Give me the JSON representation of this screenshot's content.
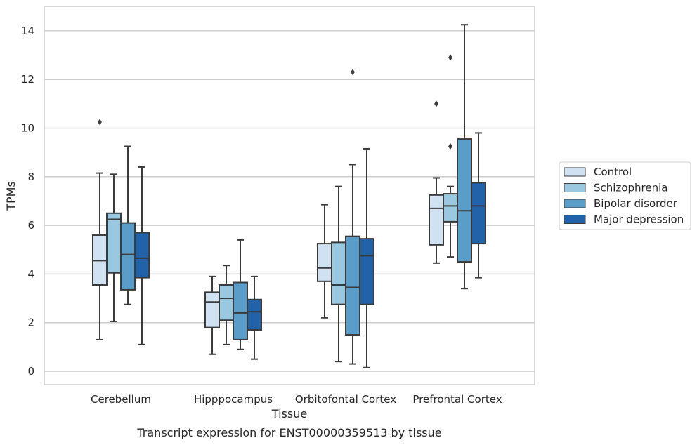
{
  "chart_data": {
    "type": "box",
    "xlabel": "Tissue",
    "ylabel": "TPMs",
    "caption": "Transcript expression for ENST00000359513 by tissue",
    "ylim": [
      -0.55,
      15
    ],
    "yticks": [
      0,
      2,
      4,
      6,
      8,
      10,
      12,
      14
    ],
    "grid": "horizontal",
    "legend_position": "right",
    "categories": [
      "Cerebellum",
      "Hipppocampus",
      "Orbitofontal Cortex",
      "Prefrontal Cortex"
    ],
    "series": [
      {
        "name": "Control",
        "color": "#d0e1f2",
        "boxes": [
          {
            "whislo": 1.3,
            "q1": 3.55,
            "med": 4.55,
            "q3": 5.6,
            "whishi": 8.15,
            "fliers": [
              10.25
            ]
          },
          {
            "whislo": 0.7,
            "q1": 1.8,
            "med": 2.85,
            "q3": 3.25,
            "whishi": 3.9,
            "fliers": []
          },
          {
            "whislo": 2.2,
            "q1": 3.7,
            "med": 4.25,
            "q3": 5.25,
            "whishi": 6.85,
            "fliers": []
          },
          {
            "whislo": 4.45,
            "q1": 5.2,
            "med": 6.7,
            "q3": 7.25,
            "whishi": 7.95,
            "fliers": [
              11.0
            ]
          }
        ]
      },
      {
        "name": "Schizophrenia",
        "color": "#9ac8e0",
        "boxes": [
          {
            "whislo": 2.05,
            "q1": 4.05,
            "med": 6.25,
            "q3": 6.5,
            "whishi": 8.1,
            "fliers": []
          },
          {
            "whislo": 1.1,
            "q1": 2.1,
            "med": 3.0,
            "q3": 3.55,
            "whishi": 4.35,
            "fliers": []
          },
          {
            "whislo": 0.4,
            "q1": 2.75,
            "med": 3.55,
            "q3": 5.3,
            "whishi": 7.6,
            "fliers": []
          },
          {
            "whislo": 4.7,
            "q1": 6.15,
            "med": 6.8,
            "q3": 7.3,
            "whishi": 7.6,
            "fliers": [
              9.25,
              12.9
            ]
          }
        ]
      },
      {
        "name": "Bipolar disorder",
        "color": "#5a9dc9",
        "boxes": [
          {
            "whislo": 2.75,
            "q1": 3.35,
            "med": 4.8,
            "q3": 6.1,
            "whishi": 9.25,
            "fliers": []
          },
          {
            "whislo": 0.9,
            "q1": 1.3,
            "med": 2.4,
            "q3": 3.65,
            "whishi": 5.4,
            "fliers": []
          },
          {
            "whislo": 0.3,
            "q1": 1.5,
            "med": 3.45,
            "q3": 5.55,
            "whishi": 8.5,
            "fliers": [
              12.3
            ]
          },
          {
            "whislo": 3.4,
            "q1": 4.5,
            "med": 6.6,
            "q3": 9.55,
            "whishi": 14.25,
            "fliers": []
          }
        ]
      },
      {
        "name": "Major depression",
        "color": "#2262a9",
        "boxes": [
          {
            "whislo": 1.1,
            "q1": 3.85,
            "med": 4.65,
            "q3": 5.7,
            "whishi": 8.4,
            "fliers": []
          },
          {
            "whislo": 0.5,
            "q1": 1.7,
            "med": 2.45,
            "q3": 2.95,
            "whishi": 3.9,
            "fliers": []
          },
          {
            "whislo": 0.15,
            "q1": 2.75,
            "med": 4.75,
            "q3": 5.45,
            "whishi": 9.15,
            "fliers": []
          },
          {
            "whislo": 3.85,
            "q1": 5.25,
            "med": 6.8,
            "q3": 7.75,
            "whishi": 9.8,
            "fliers": []
          }
        ]
      }
    ]
  }
}
